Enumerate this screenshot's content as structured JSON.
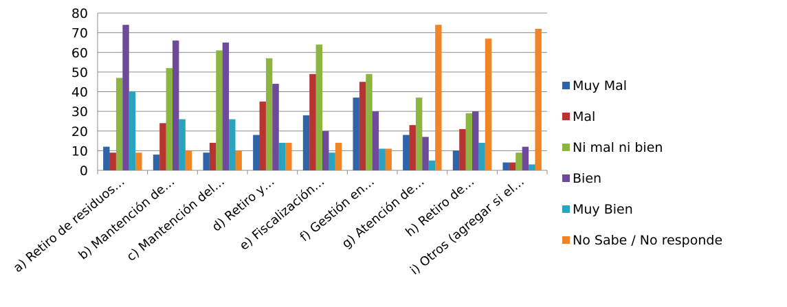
{
  "chart_data": {
    "type": "bar",
    "title": "",
    "xlabel": "",
    "ylabel": "",
    "ylim": [
      0,
      80
    ],
    "yticks": [
      "0",
      "10",
      "20",
      "30",
      "40",
      "50",
      "60",
      "70",
      "80"
    ],
    "grid": true,
    "legend_position": "right",
    "categories": [
      "a) Retiro de residuos…",
      "b) Mantención de…",
      "c) Mantención del…",
      "d) Retiro y…",
      "e) Fiscalización…",
      "f) Gestión en…",
      "g) Atención de…",
      "h) Retiro de…",
      "i) Otros (agregar si el…"
    ],
    "series": [
      {
        "name": "Muy Mal",
        "color": "#2F64A8",
        "values": [
          12,
          8,
          9,
          18,
          28,
          37,
          18,
          10,
          4
        ]
      },
      {
        "name": "Mal",
        "color": "#B83431",
        "values": [
          9,
          24,
          14,
          35,
          49,
          45,
          23,
          21,
          4
        ]
      },
      {
        "name": "Ni mal ni bien",
        "color": "#8DB542",
        "values": [
          47,
          52,
          61,
          57,
          64,
          49,
          37,
          29,
          9
        ]
      },
      {
        "name": "Bien",
        "color": "#6E4A9A",
        "values": [
          74,
          66,
          65,
          44,
          20,
          30,
          17,
          30,
          12
        ]
      },
      {
        "name": "Muy Bien",
        "color": "#2AA3C0",
        "values": [
          40,
          26,
          26,
          14,
          9,
          11,
          5,
          14,
          3
        ]
      },
      {
        "name": "No Sabe / No responde",
        "color": "#EF8526",
        "values": [
          9,
          10,
          10,
          14,
          14,
          11,
          74,
          67,
          72
        ]
      }
    ]
  }
}
